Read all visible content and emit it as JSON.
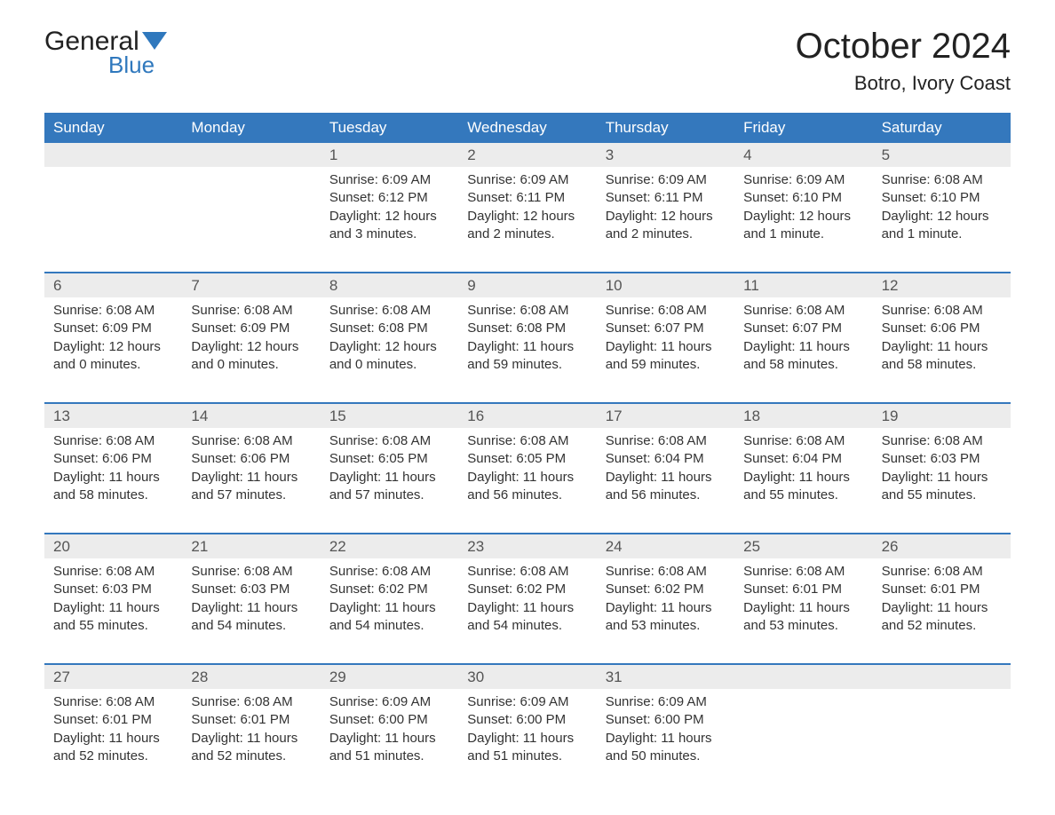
{
  "logo": {
    "general": "General",
    "blue": "Blue"
  },
  "title": "October 2024",
  "location": "Botro, Ivory Coast",
  "colors": {
    "header_bg": "#3478bd",
    "header_text": "#ffffff",
    "daynum_bg": "#ececec",
    "body_text": "#333333",
    "logo_blue": "#2f78bd",
    "week_border": "#3478bd"
  },
  "dayNames": [
    "Sunday",
    "Monday",
    "Tuesday",
    "Wednesday",
    "Thursday",
    "Friday",
    "Saturday"
  ],
  "weeks": [
    {
      "nums": [
        "",
        "",
        "1",
        "2",
        "3",
        "4",
        "5"
      ],
      "cells": [
        null,
        null,
        {
          "sunrise": "6:09 AM",
          "sunset": "6:12 PM",
          "daylight": "12 hours and 3 minutes."
        },
        {
          "sunrise": "6:09 AM",
          "sunset": "6:11 PM",
          "daylight": "12 hours and 2 minutes."
        },
        {
          "sunrise": "6:09 AM",
          "sunset": "6:11 PM",
          "daylight": "12 hours and 2 minutes."
        },
        {
          "sunrise": "6:09 AM",
          "sunset": "6:10 PM",
          "daylight": "12 hours and 1 minute."
        },
        {
          "sunrise": "6:08 AM",
          "sunset": "6:10 PM",
          "daylight": "12 hours and 1 minute."
        }
      ]
    },
    {
      "nums": [
        "6",
        "7",
        "8",
        "9",
        "10",
        "11",
        "12"
      ],
      "cells": [
        {
          "sunrise": "6:08 AM",
          "sunset": "6:09 PM",
          "daylight": "12 hours and 0 minutes."
        },
        {
          "sunrise": "6:08 AM",
          "sunset": "6:09 PM",
          "daylight": "12 hours and 0 minutes."
        },
        {
          "sunrise": "6:08 AM",
          "sunset": "6:08 PM",
          "daylight": "12 hours and 0 minutes."
        },
        {
          "sunrise": "6:08 AM",
          "sunset": "6:08 PM",
          "daylight": "11 hours and 59 minutes."
        },
        {
          "sunrise": "6:08 AM",
          "sunset": "6:07 PM",
          "daylight": "11 hours and 59 minutes."
        },
        {
          "sunrise": "6:08 AM",
          "sunset": "6:07 PM",
          "daylight": "11 hours and 58 minutes."
        },
        {
          "sunrise": "6:08 AM",
          "sunset": "6:06 PM",
          "daylight": "11 hours and 58 minutes."
        }
      ]
    },
    {
      "nums": [
        "13",
        "14",
        "15",
        "16",
        "17",
        "18",
        "19"
      ],
      "cells": [
        {
          "sunrise": "6:08 AM",
          "sunset": "6:06 PM",
          "daylight": "11 hours and 58 minutes."
        },
        {
          "sunrise": "6:08 AM",
          "sunset": "6:06 PM",
          "daylight": "11 hours and 57 minutes."
        },
        {
          "sunrise": "6:08 AM",
          "sunset": "6:05 PM",
          "daylight": "11 hours and 57 minutes."
        },
        {
          "sunrise": "6:08 AM",
          "sunset": "6:05 PM",
          "daylight": "11 hours and 56 minutes."
        },
        {
          "sunrise": "6:08 AM",
          "sunset": "6:04 PM",
          "daylight": "11 hours and 56 minutes."
        },
        {
          "sunrise": "6:08 AM",
          "sunset": "6:04 PM",
          "daylight": "11 hours and 55 minutes."
        },
        {
          "sunrise": "6:08 AM",
          "sunset": "6:03 PM",
          "daylight": "11 hours and 55 minutes."
        }
      ]
    },
    {
      "nums": [
        "20",
        "21",
        "22",
        "23",
        "24",
        "25",
        "26"
      ],
      "cells": [
        {
          "sunrise": "6:08 AM",
          "sunset": "6:03 PM",
          "daylight": "11 hours and 55 minutes."
        },
        {
          "sunrise": "6:08 AM",
          "sunset": "6:03 PM",
          "daylight": "11 hours and 54 minutes."
        },
        {
          "sunrise": "6:08 AM",
          "sunset": "6:02 PM",
          "daylight": "11 hours and 54 minutes."
        },
        {
          "sunrise": "6:08 AM",
          "sunset": "6:02 PM",
          "daylight": "11 hours and 54 minutes."
        },
        {
          "sunrise": "6:08 AM",
          "sunset": "6:02 PM",
          "daylight": "11 hours and 53 minutes."
        },
        {
          "sunrise": "6:08 AM",
          "sunset": "6:01 PM",
          "daylight": "11 hours and 53 minutes."
        },
        {
          "sunrise": "6:08 AM",
          "sunset": "6:01 PM",
          "daylight": "11 hours and 52 minutes."
        }
      ]
    },
    {
      "nums": [
        "27",
        "28",
        "29",
        "30",
        "31",
        "",
        ""
      ],
      "cells": [
        {
          "sunrise": "6:08 AM",
          "sunset": "6:01 PM",
          "daylight": "11 hours and 52 minutes."
        },
        {
          "sunrise": "6:08 AM",
          "sunset": "6:01 PM",
          "daylight": "11 hours and 52 minutes."
        },
        {
          "sunrise": "6:09 AM",
          "sunset": "6:00 PM",
          "daylight": "11 hours and 51 minutes."
        },
        {
          "sunrise": "6:09 AM",
          "sunset": "6:00 PM",
          "daylight": "11 hours and 51 minutes."
        },
        {
          "sunrise": "6:09 AM",
          "sunset": "6:00 PM",
          "daylight": "11 hours and 50 minutes."
        },
        null,
        null
      ]
    }
  ],
  "labels": {
    "sunrise": "Sunrise: ",
    "sunset": "Sunset: ",
    "daylight": "Daylight: "
  }
}
